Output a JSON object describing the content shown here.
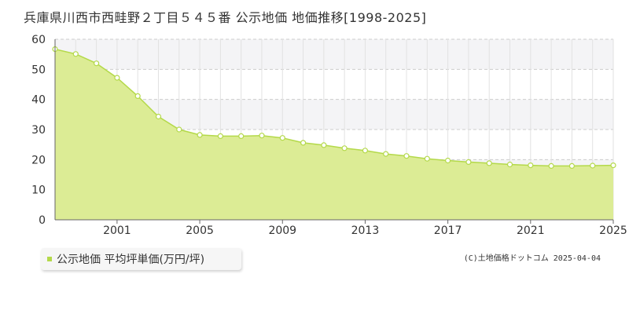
{
  "title": "兵庫県川西市西畦野２丁目５４５番 公示地価 地価推移[1998-2025]",
  "legend": {
    "label": "公示地価 平均坪単価(万円/坪)"
  },
  "credit": "(C)土地価格ドットコム 2025-04-04",
  "colors": {
    "fill": "#dcec95",
    "line": "#b4d94a",
    "marker_fill": "#ffffff",
    "band": "#f4f4f6",
    "grid": "#cccccc"
  },
  "chart_data": {
    "type": "area",
    "title": "兵庫県川西市西畦野２丁目５４５番 公示地価 地価推移[1998-2025]",
    "xlabel": "",
    "ylabel": "",
    "xlim": [
      1998,
      2025
    ],
    "ylim": [
      0,
      60
    ],
    "yticks": [
      0,
      10,
      20,
      30,
      40,
      50,
      60
    ],
    "xticks": [
      2001,
      2005,
      2009,
      2013,
      2017,
      2021,
      2025
    ],
    "grid": true,
    "legend_position": "bottom-left",
    "series": [
      {
        "name": "公示地価 平均坪単価(万円/坪)",
        "x": [
          1998,
          1999,
          2000,
          2001,
          2002,
          2003,
          2004,
          2005,
          2006,
          2007,
          2008,
          2009,
          2010,
          2011,
          2012,
          2013,
          2014,
          2015,
          2016,
          2017,
          2018,
          2019,
          2020,
          2021,
          2022,
          2023,
          2024,
          2025
        ],
        "values": [
          56.7,
          55.1,
          52.0,
          47.2,
          41.1,
          34.3,
          30.0,
          28.2,
          27.8,
          27.8,
          28.0,
          27.2,
          25.6,
          24.8,
          23.8,
          23.0,
          21.9,
          21.2,
          20.3,
          19.7,
          19.2,
          18.8,
          18.4,
          18.1,
          17.9,
          17.9,
          18.0,
          18.1
        ]
      }
    ]
  }
}
